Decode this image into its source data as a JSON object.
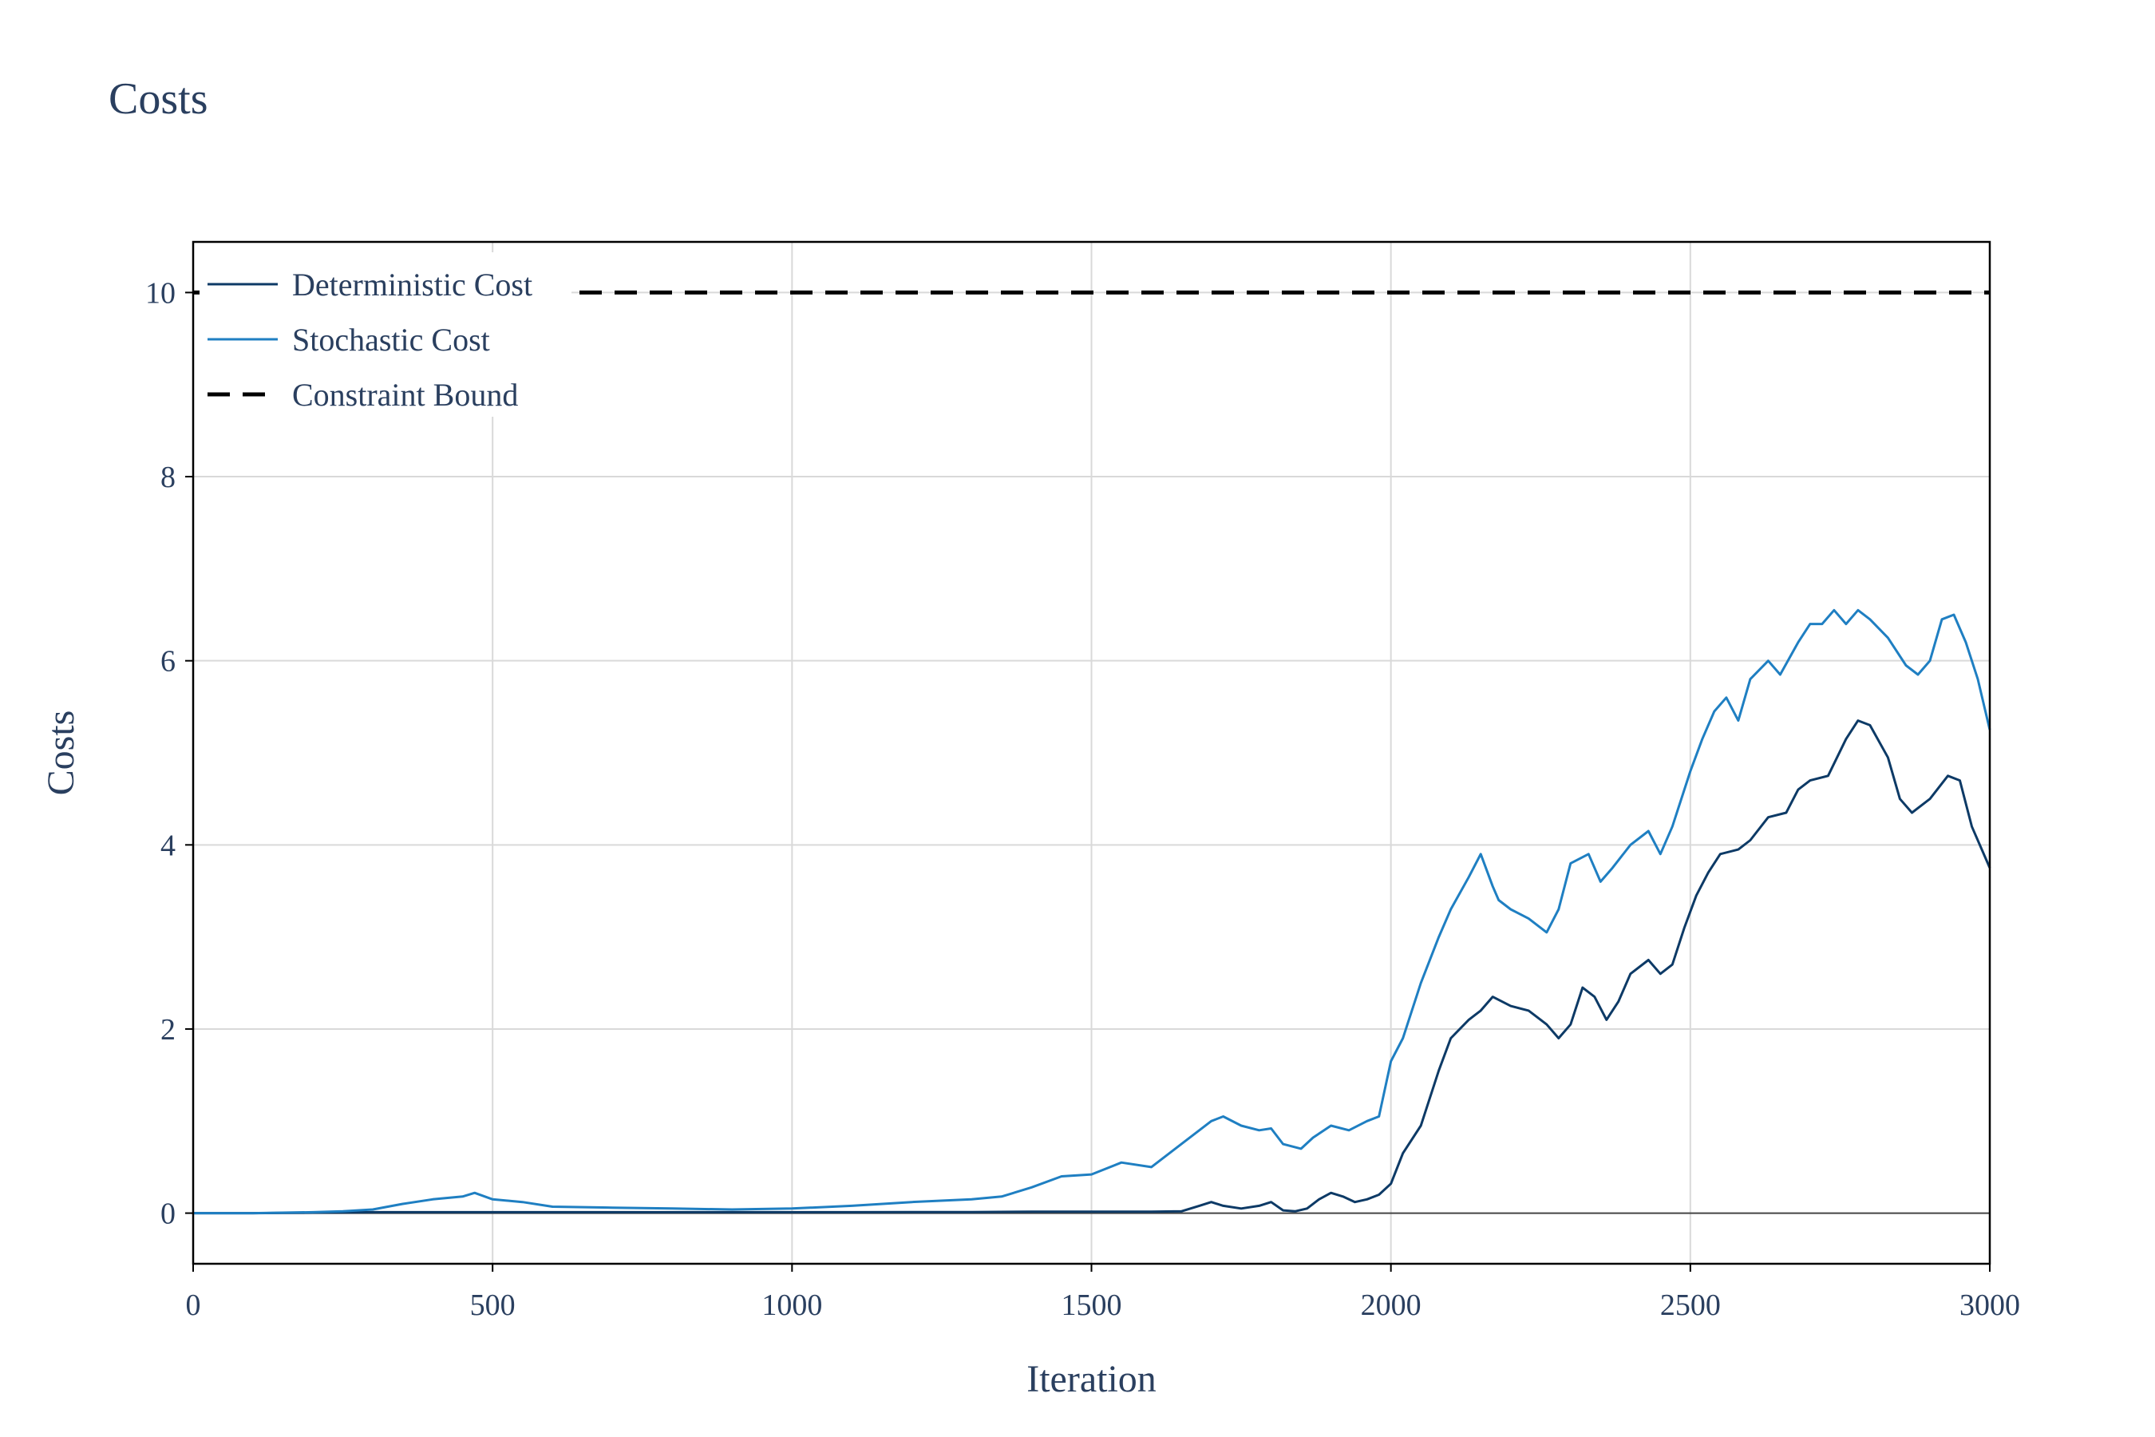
{
  "chart_data": {
    "type": "line",
    "title": "Costs",
    "xlabel": "Iteration",
    "ylabel": "Costs",
    "xlim": [
      0,
      3000
    ],
    "ylim": [
      -0.55,
      10.55
    ],
    "x_ticks": [
      0,
      500,
      1000,
      1500,
      2000,
      2500,
      3000
    ],
    "x_tick_labels": [
      "0",
      "500",
      "1000",
      "1500",
      "2000",
      "2500",
      "3000"
    ],
    "y_ticks": [
      0,
      2,
      4,
      6,
      8,
      10
    ],
    "y_tick_labels": [
      "0",
      "2",
      "4",
      "6",
      "8",
      "10"
    ],
    "grid": true,
    "legend_position": "top-left",
    "series": [
      {
        "name": "Deterministic Cost",
        "color": "#0d3a66",
        "style": "solid",
        "x": [
          0,
          100,
          200,
          300,
          400,
          500,
          600,
          700,
          800,
          900,
          1000,
          1100,
          1200,
          1300,
          1400,
          1500,
          1600,
          1650,
          1680,
          1700,
          1720,
          1750,
          1780,
          1800,
          1820,
          1840,
          1860,
          1880,
          1900,
          1920,
          1940,
          1960,
          1980,
          2000,
          2020,
          2050,
          2080,
          2100,
          2130,
          2150,
          2170,
          2200,
          2230,
          2260,
          2280,
          2300,
          2320,
          2340,
          2360,
          2380,
          2400,
          2430,
          2450,
          2470,
          2490,
          2510,
          2530,
          2550,
          2580,
          2600,
          2630,
          2660,
          2680,
          2700,
          2730,
          2760,
          2780,
          2800,
          2830,
          2850,
          2870,
          2900,
          2930,
          2950,
          2970,
          3000
        ],
        "y": [
          0,
          0,
          0.005,
          0.01,
          0.01,
          0.01,
          0.01,
          0.01,
          0.01,
          0.01,
          0.01,
          0.01,
          0.012,
          0.012,
          0.015,
          0.015,
          0.015,
          0.02,
          0.08,
          0.12,
          0.08,
          0.05,
          0.08,
          0.12,
          0.03,
          0.02,
          0.05,
          0.15,
          0.22,
          0.18,
          0.12,
          0.15,
          0.2,
          0.32,
          0.65,
          0.95,
          1.55,
          1.9,
          2.1,
          2.2,
          2.35,
          2.25,
          2.2,
          2.05,
          1.9,
          2.05,
          2.45,
          2.35,
          2.1,
          2.3,
          2.6,
          2.75,
          2.6,
          2.7,
          3.1,
          3.45,
          3.7,
          3.9,
          3.95,
          4.05,
          4.3,
          4.35,
          4.6,
          4.7,
          4.75,
          5.15,
          5.35,
          5.3,
          4.95,
          4.5,
          4.35,
          4.5,
          4.75,
          4.7,
          4.2,
          3.75
        ]
      },
      {
        "name": "Stochastic Cost",
        "color": "#1f7fc2",
        "style": "solid",
        "x": [
          0,
          100,
          200,
          250,
          300,
          350,
          400,
          450,
          470,
          500,
          550,
          600,
          700,
          800,
          900,
          1000,
          1100,
          1200,
          1300,
          1350,
          1400,
          1450,
          1500,
          1550,
          1600,
          1650,
          1680,
          1700,
          1720,
          1750,
          1780,
          1800,
          1820,
          1850,
          1870,
          1900,
          1930,
          1960,
          1980,
          2000,
          2020,
          2050,
          2080,
          2100,
          2130,
          2150,
          2170,
          2180,
          2200,
          2230,
          2260,
          2280,
          2300,
          2330,
          2350,
          2370,
          2400,
          2430,
          2450,
          2470,
          2500,
          2520,
          2540,
          2560,
          2580,
          2600,
          2630,
          2650,
          2680,
          2700,
          2720,
          2740,
          2760,
          2780,
          2800,
          2830,
          2860,
          2880,
          2900,
          2920,
          2940,
          2960,
          2980,
          3000
        ],
        "y": [
          0,
          0,
          0.01,
          0.02,
          0.04,
          0.1,
          0.15,
          0.18,
          0.22,
          0.15,
          0.12,
          0.07,
          0.06,
          0.05,
          0.04,
          0.05,
          0.08,
          0.12,
          0.15,
          0.18,
          0.28,
          0.4,
          0.42,
          0.55,
          0.5,
          0.75,
          0.9,
          1.0,
          1.05,
          0.95,
          0.9,
          0.92,
          0.75,
          0.7,
          0.82,
          0.95,
          0.9,
          1.0,
          1.05,
          1.65,
          1.9,
          2.5,
          3.0,
          3.3,
          3.65,
          3.9,
          3.55,
          3.4,
          3.3,
          3.2,
          3.05,
          3.3,
          3.8,
          3.9,
          3.6,
          3.75,
          4.0,
          4.15,
          3.9,
          4.2,
          4.8,
          5.15,
          5.45,
          5.6,
          5.35,
          5.8,
          6.0,
          5.85,
          6.2,
          6.4,
          6.4,
          6.55,
          6.4,
          6.55,
          6.45,
          6.25,
          5.95,
          5.85,
          6.0,
          6.45,
          6.5,
          6.2,
          5.8,
          5.25
        ]
      },
      {
        "name": "Constraint Bound",
        "color": "#000000",
        "style": "dashed",
        "x": [
          0,
          3000
        ],
        "y": [
          10,
          10
        ]
      }
    ]
  }
}
